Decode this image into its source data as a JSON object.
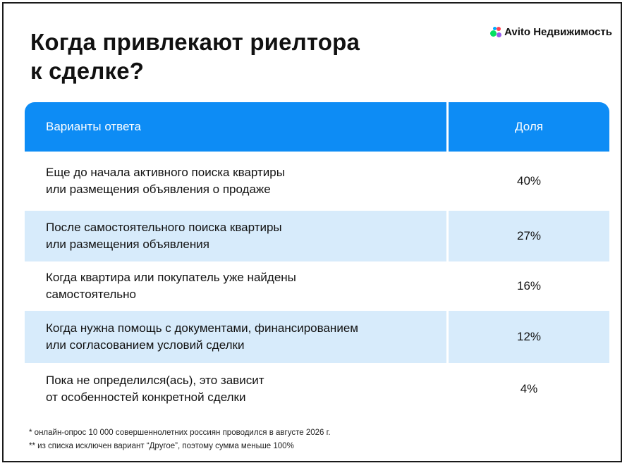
{
  "title": {
    "line1": "Когда привлекают риелтора",
    "line2": "к сделке?"
  },
  "logo": {
    "icon": "avito-dots-logo",
    "text": "Avito Недвижимость"
  },
  "table": {
    "header": {
      "col1": "Варианты ответа",
      "col2": "Доля"
    },
    "rows": [
      {
        "line1": "Еще до начала активного поиска квартиры",
        "line2": "или размещения объявления о продаже",
        "share": "40%"
      },
      {
        "line1": "После самостоятельного поиска квартиры",
        "line2": "или размещения объявления",
        "share": "27%"
      },
      {
        "line1": "Когда квартира или покупатель уже найдены",
        "line2": "самостоятельно",
        "share": "16%"
      },
      {
        "line1": "Когда нужна помощь с документами, финансированием",
        "line2": "или согласованием условий сделки",
        "share": "12%"
      },
      {
        "line1": "Пока не определился(ась), это зависит",
        "line2": "от особенностей конкретной сделки",
        "share": "4%"
      }
    ]
  },
  "footnotes": [
    "* онлайн-опрос 10 000 совершеннолетних россиян проводился в августе 2026 г.",
    "** из списка исключен вариант “Другое”, поэтому сумма меньше 100%"
  ],
  "colors": {
    "header_bg": "#0d8cf5",
    "alt_row_bg": "#d7ebfb"
  }
}
